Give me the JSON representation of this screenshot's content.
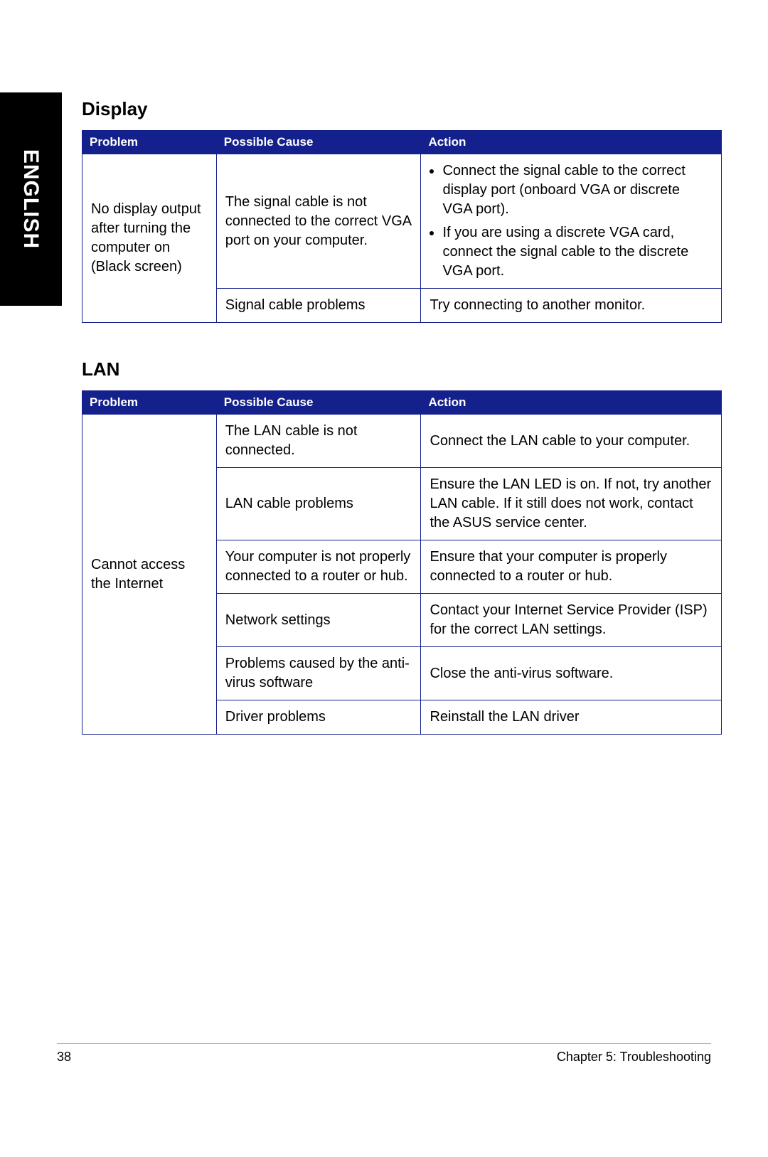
{
  "sideTab": "ENGLISH",
  "colors": {
    "header_bg": "#14218c",
    "header_text": "#ffffff",
    "border": "#14218c",
    "side_bg": "#000000",
    "side_text": "#ffffff",
    "body_text": "#000000",
    "footer_rule": "#b0b0b0"
  },
  "fonts": {
    "section_title_size": 26,
    "th_size": 17,
    "td_size": 20,
    "footer_size": 18
  },
  "columns": {
    "problem": "Problem",
    "cause": "Possible Cause",
    "action": "Action"
  },
  "display": {
    "title": "Display",
    "problem": "No display output after turning the computer on (Black screen)",
    "row1": {
      "cause": "The signal cable is not connected to the correct VGA port on your computer.",
      "action_b1": "Connect the signal cable to the correct display port (onboard VGA or discrete VGA port).",
      "action_b2": "If you are using a discrete VGA card, connect the signal cable to the discrete VGA port."
    },
    "row2": {
      "cause": "Signal cable problems",
      "action": "Try connecting to another monitor."
    }
  },
  "lan": {
    "title": "LAN",
    "problem": "Cannot access the Internet",
    "rows": [
      {
        "cause": "The LAN cable is not connected.",
        "action": "Connect the LAN cable to your computer."
      },
      {
        "cause": "LAN cable problems",
        "action": "Ensure the LAN LED is on. If not, try another LAN cable. If it still does not work, contact the ASUS service center."
      },
      {
        "cause": "Your computer is not properly connected to a router or hub.",
        "action": "Ensure that your computer is properly connected to a router or hub."
      },
      {
        "cause": "Network settings",
        "action": "Contact your Internet Service Provider (ISP) for the correct LAN settings."
      },
      {
        "cause": "Problems caused by the anti-virus software",
        "action": "Close the anti-virus software."
      },
      {
        "cause": "Driver problems",
        "action": "Reinstall the LAN driver"
      }
    ]
  },
  "footer": {
    "page": "38",
    "chapter": "Chapter 5: Troubleshooting"
  }
}
